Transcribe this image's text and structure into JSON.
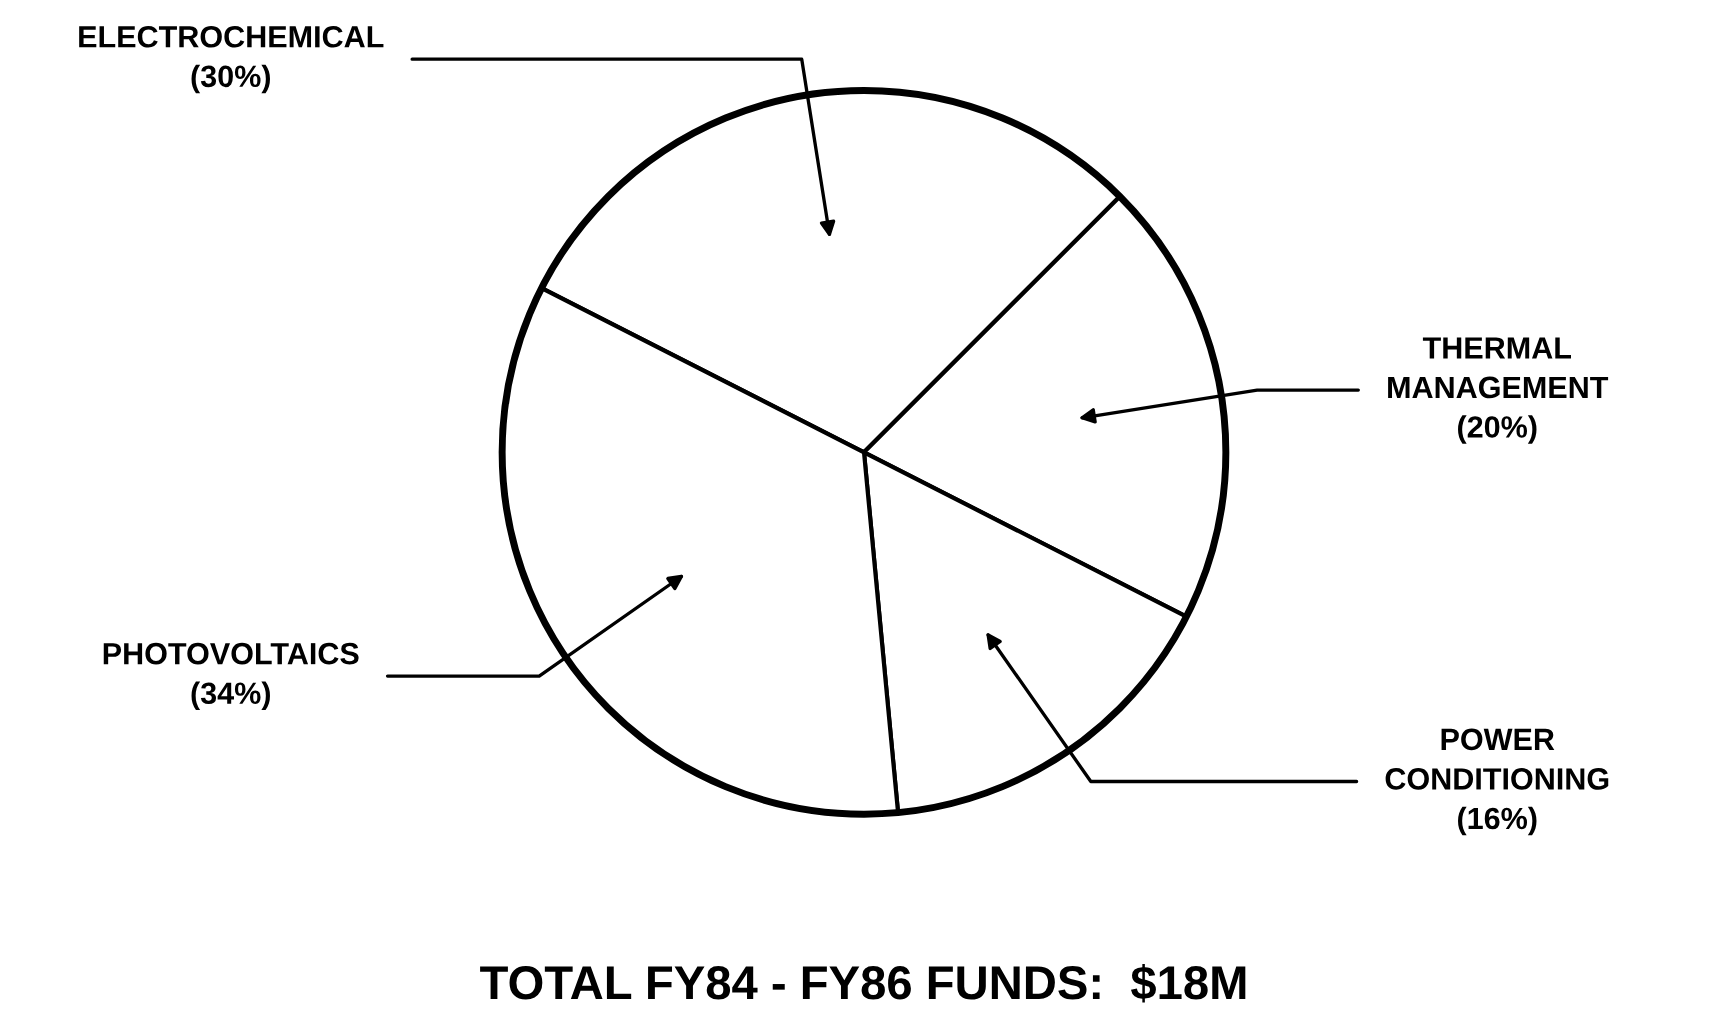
{
  "chart_data": {
    "type": "pie",
    "categories": [
      "ELECTROCHEMICAL",
      "THERMAL MANAGEMENT",
      "POWER CONDITIONING",
      "PHOTOVOLTAICS"
    ],
    "values": [
      30,
      20,
      16,
      34
    ],
    "value_labels": [
      "(30%)",
      "(20%)",
      "(16%)",
      "(34%)"
    ],
    "colors": [
      "#ffffff",
      "#ffffff",
      "#ffffff",
      "#ffffff"
    ],
    "title": "TOTAL FY84 - FY86 FUNDS:  $18M"
  }
}
